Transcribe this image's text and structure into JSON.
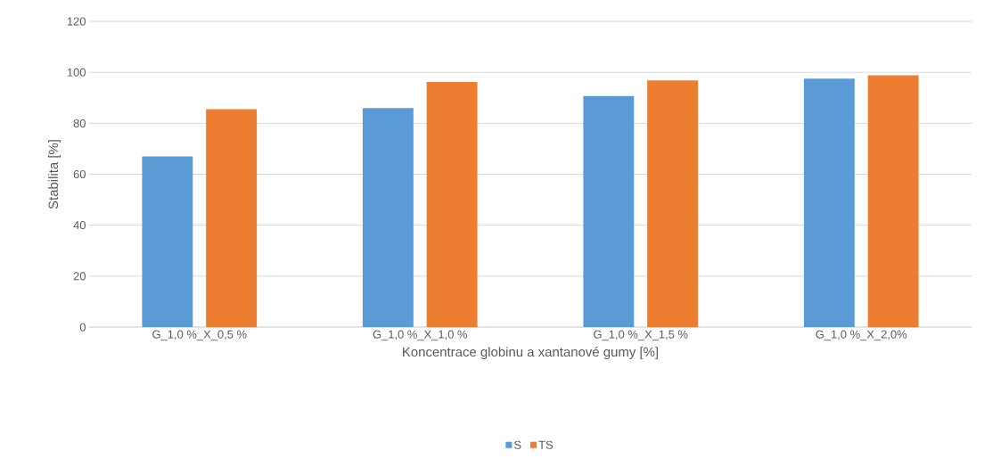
{
  "chart_data": {
    "type": "bar",
    "xlabel": "Koncentrace globinu a xantanové gumy [%]",
    "ylabel": "Stabilita [%]",
    "categories": [
      "G_1,0 %_X_0,5 %",
      "G_1,0 %_X_1,0 %",
      "G_1,0 %_X_1,5 %",
      "G_1,0 %_X_2,0%"
    ],
    "series": [
      {
        "name": "S",
        "color": "#5b9bd5",
        "values": [
          67,
          86,
          90.7,
          97.5
        ]
      },
      {
        "name": "TS",
        "color": "#ed7d31",
        "values": [
          85.5,
          96.2,
          96.8,
          98.8
        ]
      }
    ],
    "ylim": [
      0,
      120
    ],
    "yticks": [
      0,
      20,
      40,
      60,
      80,
      100,
      120
    ],
    "grid": "y",
    "legend": "bottom"
  }
}
